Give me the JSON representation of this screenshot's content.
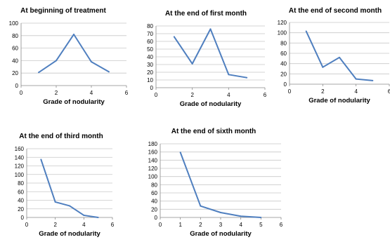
{
  "colors": {
    "line": "#4f7fbf",
    "grid": "#c8c8c8",
    "axis": "#8a8a8a"
  },
  "chart_data": [
    {
      "type": "line",
      "title": "At beginning of treatment",
      "xlabel": "Grade of nodularity",
      "ylabel": "",
      "x": [
        1,
        2,
        3,
        4,
        5
      ],
      "series": [
        {
          "values": [
            21,
            40,
            82,
            38,
            22
          ]
        }
      ],
      "xlim": [
        0,
        6
      ],
      "xticks": [
        0,
        2,
        4,
        6
      ],
      "ylim": [
        0,
        100
      ],
      "yticks": [
        0,
        20,
        40,
        60,
        80,
        100
      ],
      "grid": true,
      "legend": "none"
    },
    {
      "type": "line",
      "title": "At the end of first month",
      "xlabel": "Grade of nodularity",
      "ylabel": "",
      "x": [
        1,
        2,
        3,
        4,
        5
      ],
      "series": [
        {
          "values": [
            66,
            31,
            76,
            17,
            13
          ]
        }
      ],
      "xlim": [
        0,
        6
      ],
      "xticks": [
        0,
        2,
        4,
        6
      ],
      "ylim": [
        0,
        80
      ],
      "yticks": [
        0,
        10,
        20,
        30,
        40,
        50,
        60,
        70,
        80
      ],
      "grid": true,
      "legend": "none"
    },
    {
      "type": "line",
      "title": "At the end of second month",
      "xlabel": "Grade of nodularity",
      "ylabel": "",
      "x": [
        1,
        2,
        3,
        4,
        5
      ],
      "series": [
        {
          "values": [
            103,
            33,
            52,
            10,
            7
          ]
        }
      ],
      "xlim": [
        0,
        6
      ],
      "xticks": [
        0,
        2,
        4,
        6
      ],
      "ylim": [
        0,
        120
      ],
      "yticks": [
        0,
        20,
        40,
        60,
        80,
        100,
        120
      ],
      "grid": true,
      "legend": "none"
    },
    {
      "type": "line",
      "title": "At the end of third month",
      "xlabel": "Grade of nodularity",
      "ylabel": "",
      "x": [
        1,
        2,
        3,
        4,
        5
      ],
      "series": [
        {
          "values": [
            135,
            36,
            27,
            5,
            0
          ]
        }
      ],
      "xlim": [
        0,
        6
      ],
      "xticks": [
        0,
        2,
        4,
        6
      ],
      "ylim": [
        0,
        160
      ],
      "yticks": [
        0,
        20,
        40,
        60,
        80,
        100,
        120,
        140,
        160
      ],
      "grid": true,
      "legend": "none"
    },
    {
      "type": "line",
      "title": "At the end of sixth month",
      "xlabel": "Grade of nodularity",
      "ylabel": "",
      "x": [
        1,
        2,
        3,
        4,
        5
      ],
      "series": [
        {
          "values": [
            159,
            28,
            12,
            3,
            0
          ]
        }
      ],
      "xlim": [
        0,
        6
      ],
      "xticks": [
        0,
        1,
        2,
        3,
        4,
        5,
        6
      ],
      "ylim": [
        0,
        180
      ],
      "yticks": [
        0,
        20,
        40,
        60,
        80,
        100,
        120,
        140,
        160,
        180
      ],
      "grid": true,
      "legend": "none"
    }
  ]
}
